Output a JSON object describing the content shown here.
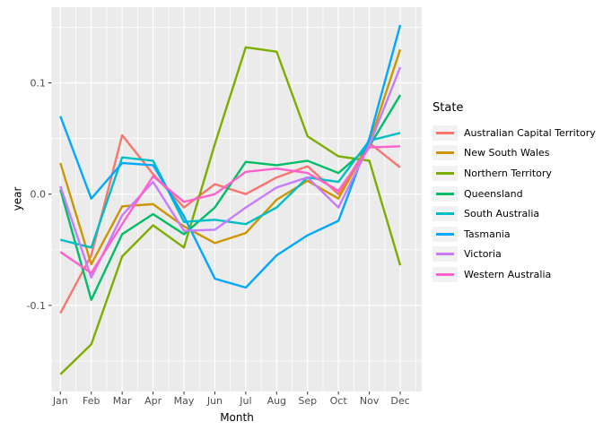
{
  "chart_data": {
    "type": "line",
    "x": [
      "Jan",
      "Feb",
      "Mar",
      "Apr",
      "May",
      "Jun",
      "Jul",
      "Aug",
      "Sep",
      "Oct",
      "Nov",
      "Dec"
    ],
    "xlabel": "Month",
    "ylabel": "year",
    "ylim": [
      -0.177,
      0.168
    ],
    "yticks_major": [
      0.1,
      0.0,
      -0.1
    ],
    "ytick_labels": [
      "0.1",
      "0.0",
      "-0.1"
    ],
    "yticks_minor": [
      0.15,
      0.05,
      -0.05,
      -0.15
    ],
    "grid": "major-and-minor, white on grey panel",
    "panel_bg": "#EBEBEB",
    "tick_label_color": "#4D4D4D",
    "legend_title": "State",
    "legend_position": "right",
    "series": [
      {
        "name": "Australian Capital Territory",
        "color": "#F8766D",
        "values": [
          -0.107,
          -0.055,
          0.053,
          0.018,
          -0.012,
          0.009,
          0.0,
          0.015,
          0.025,
          0.0,
          0.046,
          0.024
        ]
      },
      {
        "name": "New South Wales",
        "color": "#CD9600",
        "values": [
          0.028,
          -0.063,
          -0.011,
          -0.009,
          -0.029,
          -0.044,
          -0.035,
          -0.005,
          0.012,
          -0.004,
          0.046,
          0.13
        ]
      },
      {
        "name": "Northern Territory",
        "color": "#7CAE00",
        "values": [
          -0.162,
          -0.135,
          -0.056,
          -0.028,
          -0.048,
          0.045,
          0.132,
          0.128,
          0.052,
          0.034,
          0.03,
          -0.064
        ]
      },
      {
        "name": "Queensland",
        "color": "#00BE67",
        "values": [
          0.004,
          -0.095,
          -0.036,
          -0.018,
          -0.036,
          -0.012,
          0.029,
          0.026,
          0.03,
          0.019,
          0.043,
          0.089
        ]
      },
      {
        "name": "South Australia",
        "color": "#00BFC4",
        "values": [
          -0.041,
          -0.048,
          0.033,
          0.03,
          -0.025,
          -0.023,
          -0.027,
          -0.012,
          0.015,
          0.011,
          0.048,
          0.055
        ]
      },
      {
        "name": "Tasmania",
        "color": "#00A9FF",
        "values": [
          0.07,
          -0.004,
          0.028,
          0.026,
          -0.02,
          -0.076,
          -0.084,
          -0.055,
          -0.037,
          -0.024,
          0.05,
          0.152
        ]
      },
      {
        "name": "Victoria",
        "color": "#C77CFF",
        "values": [
          0.007,
          -0.075,
          -0.019,
          0.011,
          -0.033,
          -0.032,
          -0.012,
          0.006,
          0.015,
          -0.012,
          0.044,
          0.114
        ]
      },
      {
        "name": "Western Australia",
        "color": "#FF61CC",
        "values": [
          -0.052,
          -0.071,
          -0.027,
          0.016,
          -0.007,
          0.0,
          0.02,
          0.023,
          0.019,
          0.003,
          0.042,
          0.043
        ]
      }
    ]
  }
}
